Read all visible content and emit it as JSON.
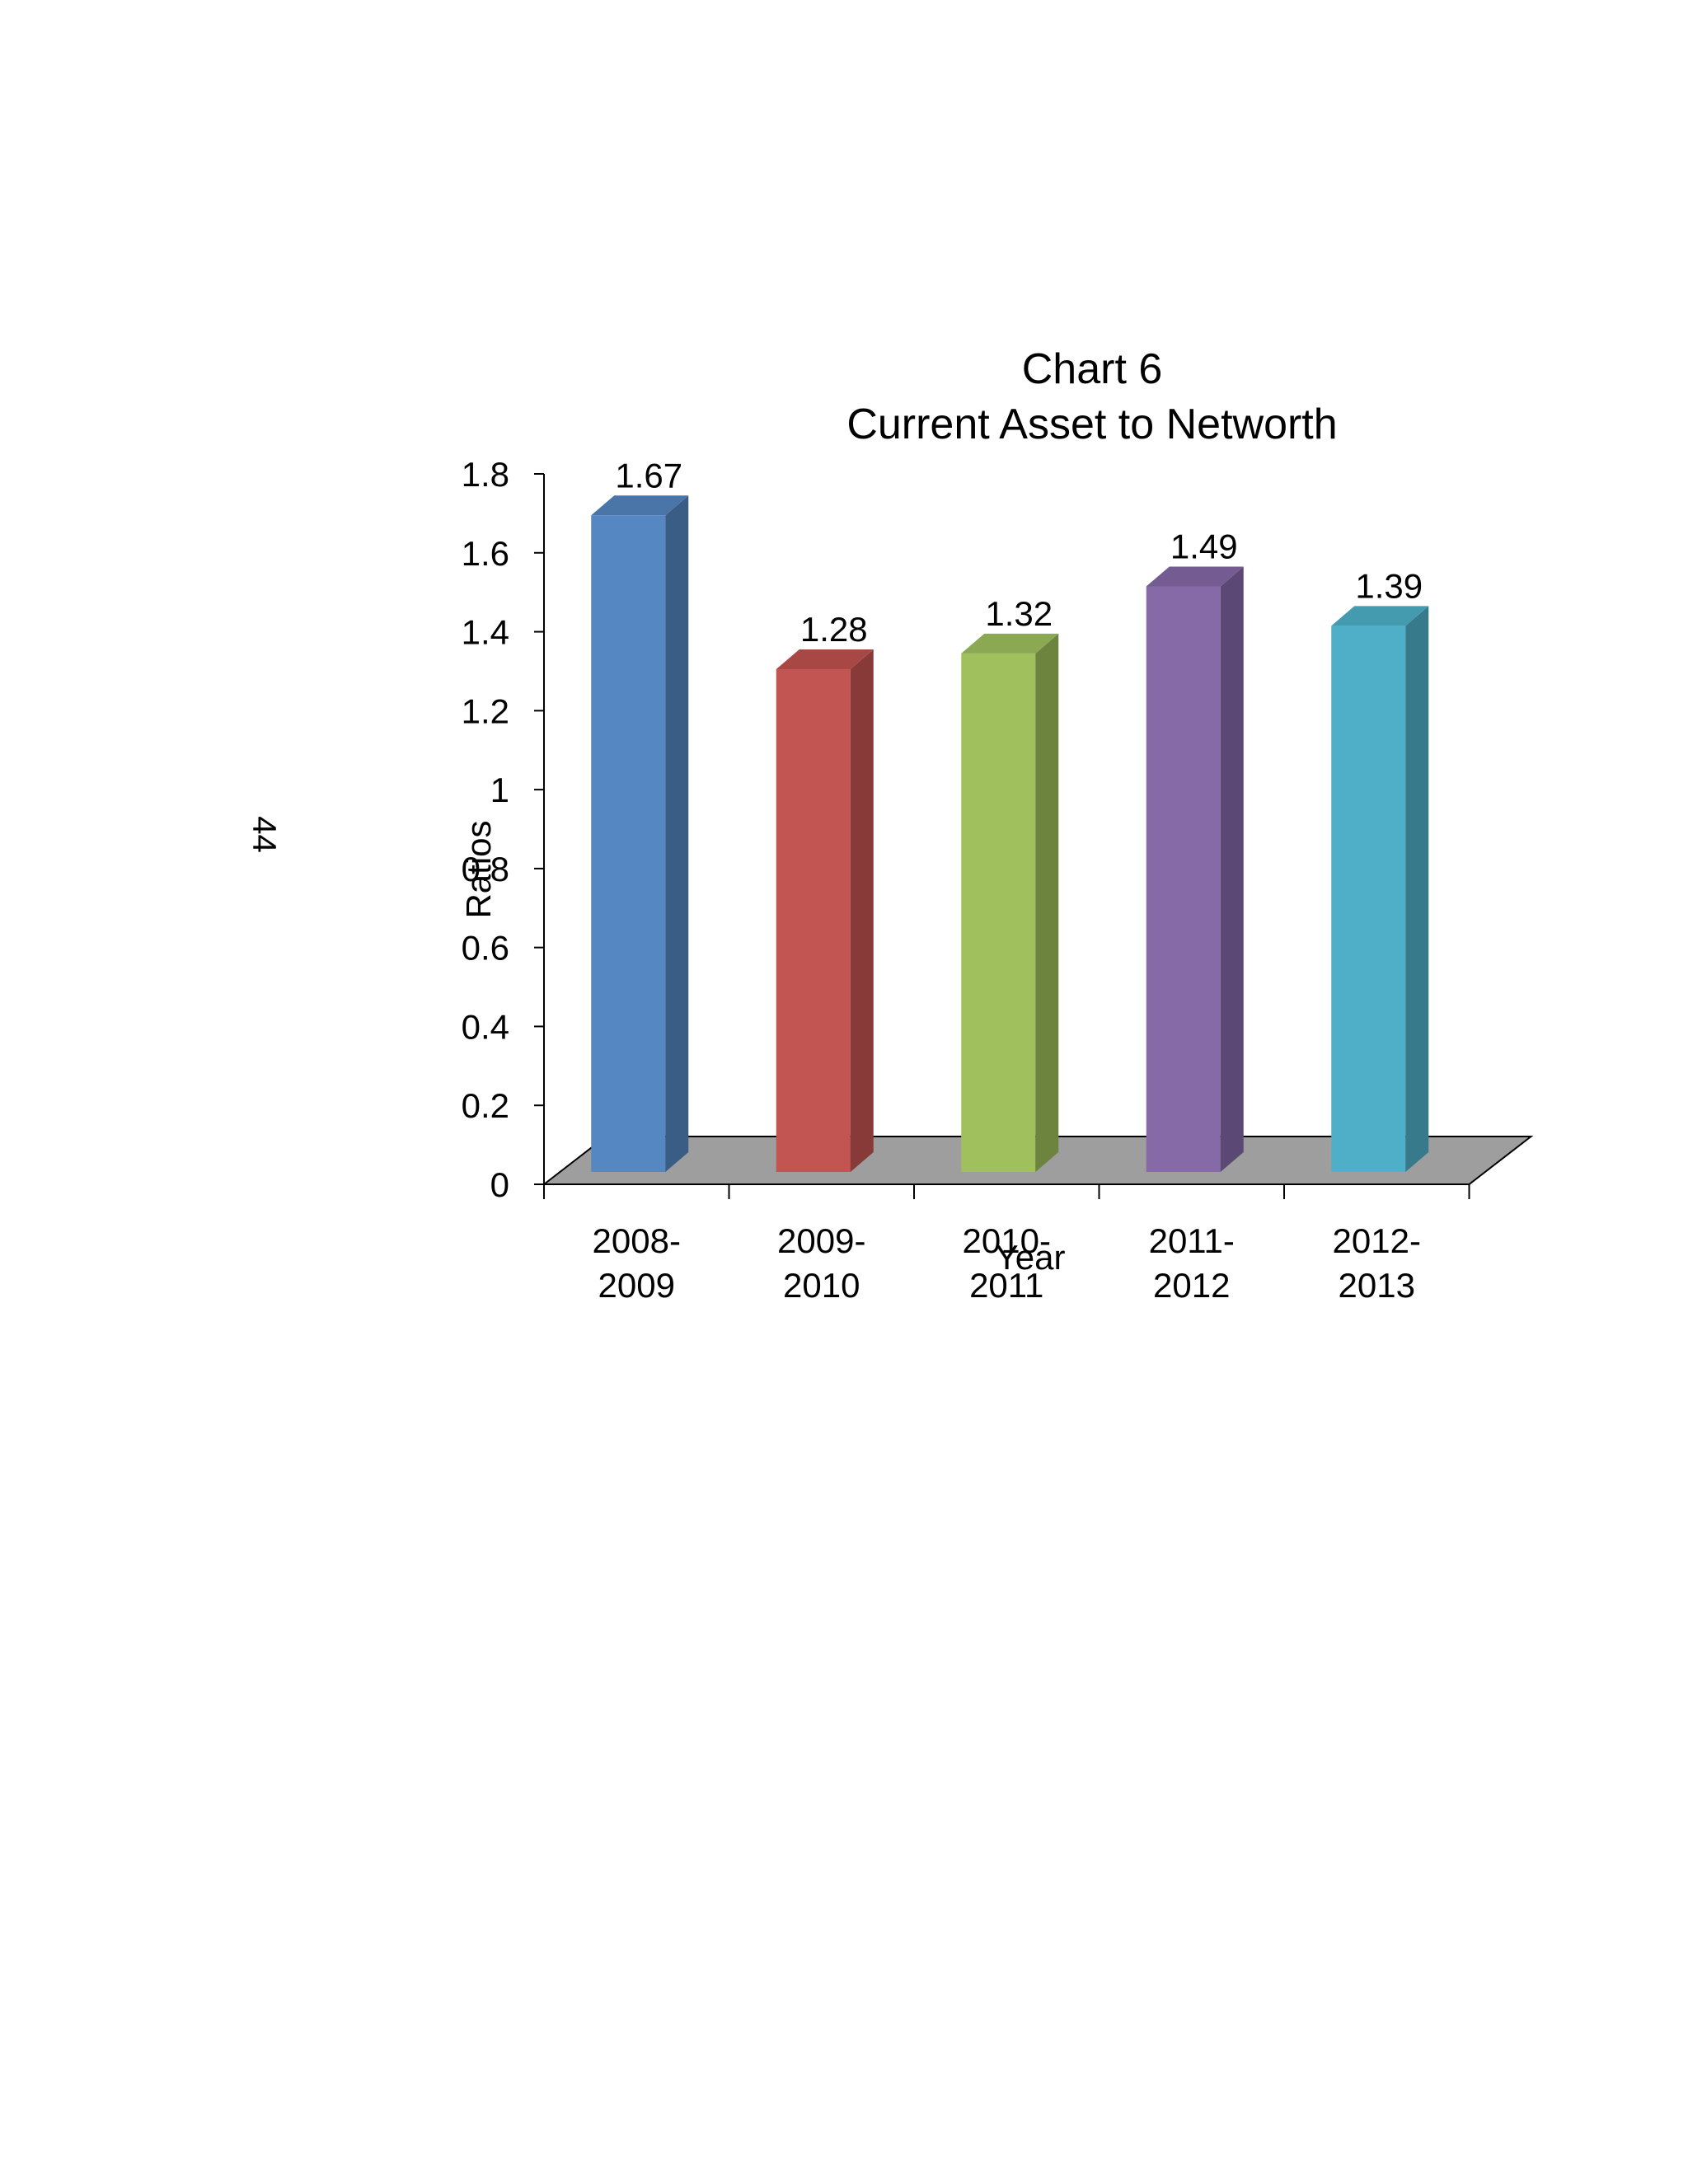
{
  "page": {
    "number": "44"
  },
  "chart_data": {
    "type": "bar",
    "title": "Chart 6",
    "subtitle": "Current Asset to Networth",
    "xlabel": "Year",
    "ylabel": "Ratios",
    "ylim": [
      0,
      1.8
    ],
    "yticks": [
      0,
      0.2,
      0.4,
      0.6,
      0.8,
      1,
      1.2,
      1.4,
      1.6,
      1.8
    ],
    "categories": [
      [
        "2008-",
        "2009"
      ],
      [
        "2009-",
        "2010"
      ],
      [
        "2010-",
        "2011"
      ],
      [
        "2011-",
        "2012"
      ],
      [
        "2012-",
        "2013"
      ]
    ],
    "values": [
      1.67,
      1.28,
      1.32,
      1.49,
      1.39
    ],
    "value_labels": [
      "1.67",
      "1.28",
      "1.32",
      "1.49",
      "1.39"
    ],
    "colors": [
      "#5587C2",
      "#C25451",
      "#A0C05E",
      "#866AA8",
      "#4FAFC8"
    ],
    "side_colors": [
      "#3A5D85",
      "#873A37",
      "#6D843F",
      "#5C4874",
      "#367A8B"
    ],
    "top_colors": [
      "#4A75A8",
      "#A84845",
      "#8BA852",
      "#745C92",
      "#449AAF"
    ],
    "floor_color": "#9E9E9E",
    "grid": false,
    "legend": "none"
  }
}
